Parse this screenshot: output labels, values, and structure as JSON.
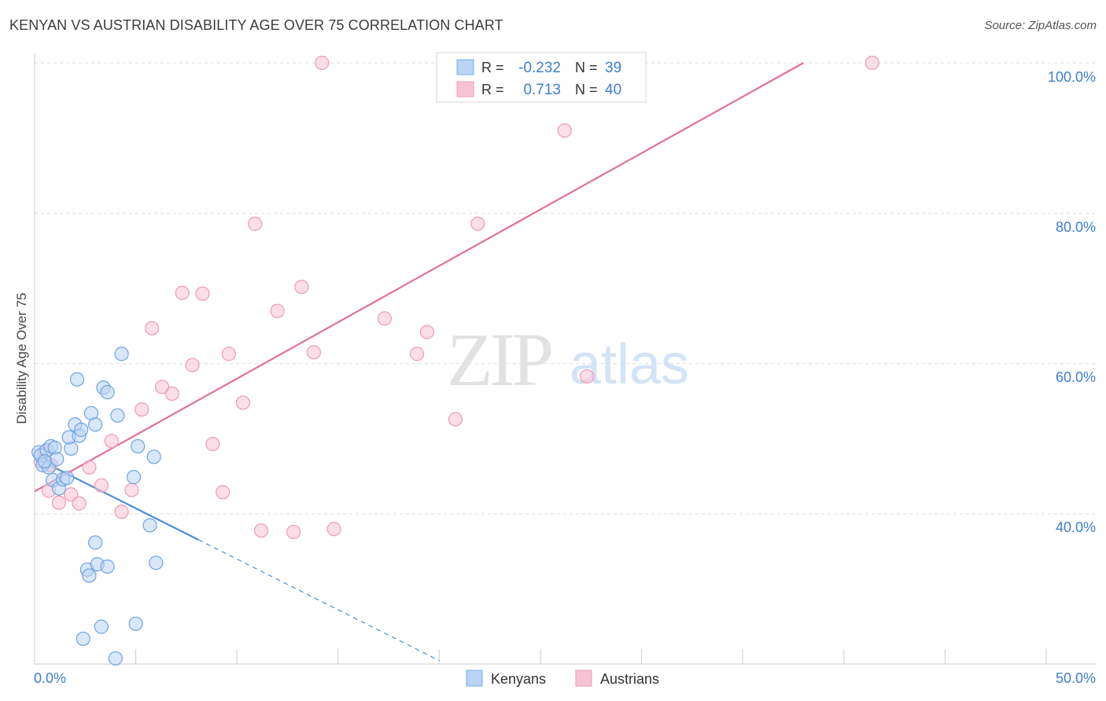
{
  "title": "KENYAN VS AUSTRIAN DISABILITY AGE OVER 75 CORRELATION CHART",
  "source": "Source: ZipAtlas.com",
  "watermark": {
    "part1": "ZIP",
    "part2": "atlas"
  },
  "colors": {
    "kenyans": "#4a90d9",
    "kenyans_fill": "#b9d4f4",
    "austrians": "#e0719a",
    "austrians_fill": "#f7c3d4",
    "axis_label": "#3f7fcf",
    "grid": "#dddddd"
  },
  "legend": {
    "rows": [
      {
        "r_label": "R =",
        "r_value": "-0.232",
        "n_label": "N =",
        "n_value": "39"
      },
      {
        "r_label": "R =",
        "r_value": "0.713",
        "n_label": "N =",
        "n_value": "40"
      }
    ]
  },
  "bottom_legend": [
    "Kenyans",
    "Austrians"
  ],
  "chart_data": {
    "type": "scatter",
    "title": "KENYAN VS AUSTRIAN DISABILITY AGE OVER 75 CORRELATION CHART",
    "xlabel": "",
    "ylabel": "Disability Age Over 75",
    "xlim": [
      0,
      50
    ],
    "ylim": [
      20,
      102
    ],
    "x_tick_labels": [
      "0.0%",
      "50.0%"
    ],
    "y_ticks": [
      40,
      60,
      80,
      100
    ],
    "y_tick_labels": [
      "40.0%",
      "60.0%",
      "80.0%",
      "100.0%"
    ],
    "series": [
      {
        "name": "Kenyans",
        "r": -0.232,
        "n": 39,
        "trend": {
          "x0": 0,
          "y0": 47.5,
          "x_solid_end": 8.1,
          "x_dash_end": 20.0,
          "slope": -1.35
        },
        "points": [
          [
            0.2,
            48.2
          ],
          [
            0.3,
            47.8
          ],
          [
            0.4,
            46.5
          ],
          [
            0.6,
            48.5
          ],
          [
            0.7,
            46.2
          ],
          [
            0.8,
            49.0
          ],
          [
            0.9,
            44.5
          ],
          [
            1.0,
            48.8
          ],
          [
            1.1,
            47.3
          ],
          [
            1.2,
            43.4
          ],
          [
            1.4,
            44.6
          ],
          [
            1.6,
            44.8
          ],
          [
            1.8,
            48.7
          ],
          [
            1.7,
            50.2
          ],
          [
            2.0,
            51.9
          ],
          [
            2.1,
            57.9
          ],
          [
            2.2,
            50.4
          ],
          [
            2.3,
            51.2
          ],
          [
            2.8,
            53.4
          ],
          [
            3.0,
            51.9
          ],
          [
            3.4,
            56.8
          ],
          [
            3.6,
            56.2
          ],
          [
            4.1,
            53.1
          ],
          [
            4.3,
            61.3
          ],
          [
            4.9,
            44.9
          ],
          [
            5.1,
            49.0
          ],
          [
            5.9,
            47.6
          ],
          [
            5.7,
            38.5
          ],
          [
            3.0,
            36.2
          ],
          [
            2.6,
            32.6
          ],
          [
            2.7,
            31.8
          ],
          [
            3.1,
            33.3
          ],
          [
            3.6,
            33.0
          ],
          [
            6.0,
            33.5
          ],
          [
            3.3,
            25.0
          ],
          [
            5.0,
            25.4
          ],
          [
            2.4,
            23.4
          ],
          [
            4.0,
            20.8
          ],
          [
            0.5,
            47.0
          ]
        ]
      },
      {
        "name": "Austrians",
        "r": 0.713,
        "n": 40,
        "trend": {
          "x0": 0,
          "y0": 43.0,
          "x1": 38.0,
          "y1": 100.0
        },
        "points": [
          [
            0.3,
            47.0
          ],
          [
            0.5,
            48.3
          ],
          [
            0.8,
            46.5
          ],
          [
            0.7,
            43.1
          ],
          [
            1.2,
            41.5
          ],
          [
            1.8,
            42.6
          ],
          [
            2.2,
            41.4
          ],
          [
            2.7,
            46.2
          ],
          [
            3.3,
            43.8
          ],
          [
            3.8,
            49.7
          ],
          [
            4.3,
            40.3
          ],
          [
            4.8,
            43.2
          ],
          [
            5.3,
            53.9
          ],
          [
            5.8,
            64.7
          ],
          [
            6.3,
            56.9
          ],
          [
            6.8,
            56.0
          ],
          [
            7.3,
            69.4
          ],
          [
            7.8,
            59.8
          ],
          [
            8.3,
            69.3
          ],
          [
            8.8,
            49.3
          ],
          [
            9.3,
            42.9
          ],
          [
            9.6,
            61.3
          ],
          [
            10.3,
            54.8
          ],
          [
            10.9,
            78.6
          ],
          [
            11.2,
            37.8
          ],
          [
            12.0,
            67.0
          ],
          [
            12.8,
            37.6
          ],
          [
            13.2,
            70.2
          ],
          [
            13.8,
            61.5
          ],
          [
            14.2,
            100.0
          ],
          [
            14.8,
            38.0
          ],
          [
            17.3,
            66.0
          ],
          [
            18.9,
            61.3
          ],
          [
            19.4,
            64.2
          ],
          [
            20.8,
            52.6
          ],
          [
            21.9,
            78.6
          ],
          [
            26.2,
            91.0
          ],
          [
            27.3,
            58.3
          ],
          [
            28.7,
            100.0
          ],
          [
            41.4,
            100.0
          ]
        ]
      }
    ]
  }
}
